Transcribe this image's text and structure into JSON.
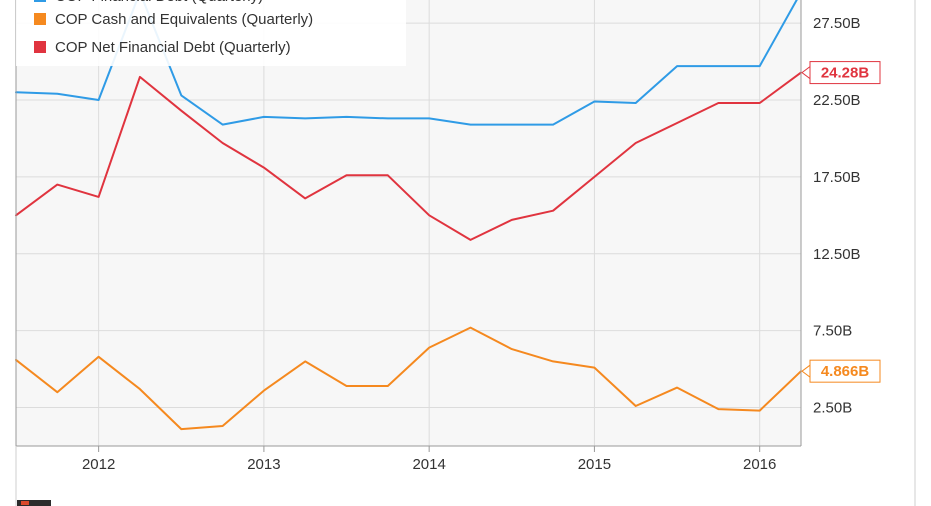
{
  "chart_data": {
    "type": "line",
    "x_tick_labels": [
      "2012",
      "2013",
      "2014",
      "2015",
      "2016"
    ],
    "y_tick_labels": [
      "27.50B",
      "22.50B",
      "17.50B",
      "12.50B",
      "7.50B",
      "2.50B"
    ],
    "y_ticks": [
      27.5,
      22.5,
      17.5,
      12.5,
      7.5,
      2.5
    ],
    "x_range": [
      2011.5,
      2016.25
    ],
    "y_range": [
      0,
      29.0
    ],
    "grid": true,
    "legend_position": "top-left",
    "series": [
      {
        "name": "COP Financial Debt (Quarterly)",
        "color": "#2f9be6",
        "x": [
          2011.5,
          2011.75,
          2012.0,
          2012.25,
          2012.5,
          2012.75,
          2013.0,
          2013.25,
          2013.5,
          2013.75,
          2014.0,
          2014.25,
          2014.5,
          2014.75,
          2015.0,
          2015.25,
          2015.5,
          2015.75,
          2016.0,
          2016.25
        ],
        "values": [
          23.0,
          22.9,
          22.5,
          29.5,
          22.8,
          20.9,
          21.4,
          21.3,
          21.4,
          21.3,
          21.3,
          20.9,
          20.9,
          20.9,
          22.4,
          22.3,
          24.7,
          24.7,
          24.7,
          29.5
        ]
      },
      {
        "name": "COP Cash and Equivalents (Quarterly)",
        "color": "#f5891f",
        "x": [
          2011.5,
          2011.75,
          2012.0,
          2012.25,
          2012.5,
          2012.75,
          2013.0,
          2013.25,
          2013.5,
          2013.75,
          2014.0,
          2014.25,
          2014.5,
          2014.75,
          2015.0,
          2015.25,
          2015.5,
          2015.75,
          2016.0,
          2016.25
        ],
        "values": [
          5.6,
          3.5,
          5.8,
          3.7,
          1.1,
          1.3,
          3.6,
          5.5,
          3.9,
          3.9,
          6.4,
          7.7,
          6.3,
          5.5,
          5.1,
          2.6,
          3.8,
          2.4,
          2.3,
          4.866
        ],
        "end_label": "4.866B"
      },
      {
        "name": "COP Net Financial Debt (Quarterly)",
        "color": "#e0343f",
        "x": [
          2011.5,
          2011.75,
          2012.0,
          2012.25,
          2012.5,
          2012.75,
          2013.0,
          2013.25,
          2013.5,
          2013.75,
          2014.0,
          2014.25,
          2014.5,
          2014.75,
          2015.0,
          2015.25,
          2015.5,
          2015.75,
          2016.0,
          2016.25
        ],
        "values": [
          15.0,
          17.0,
          16.2,
          24.0,
          21.8,
          19.7,
          18.1,
          16.1,
          17.6,
          17.6,
          15.0,
          13.4,
          14.7,
          15.3,
          17.5,
          19.7,
          21.0,
          22.3,
          22.3,
          24.28
        ],
        "end_label": "24.28B"
      }
    ]
  }
}
